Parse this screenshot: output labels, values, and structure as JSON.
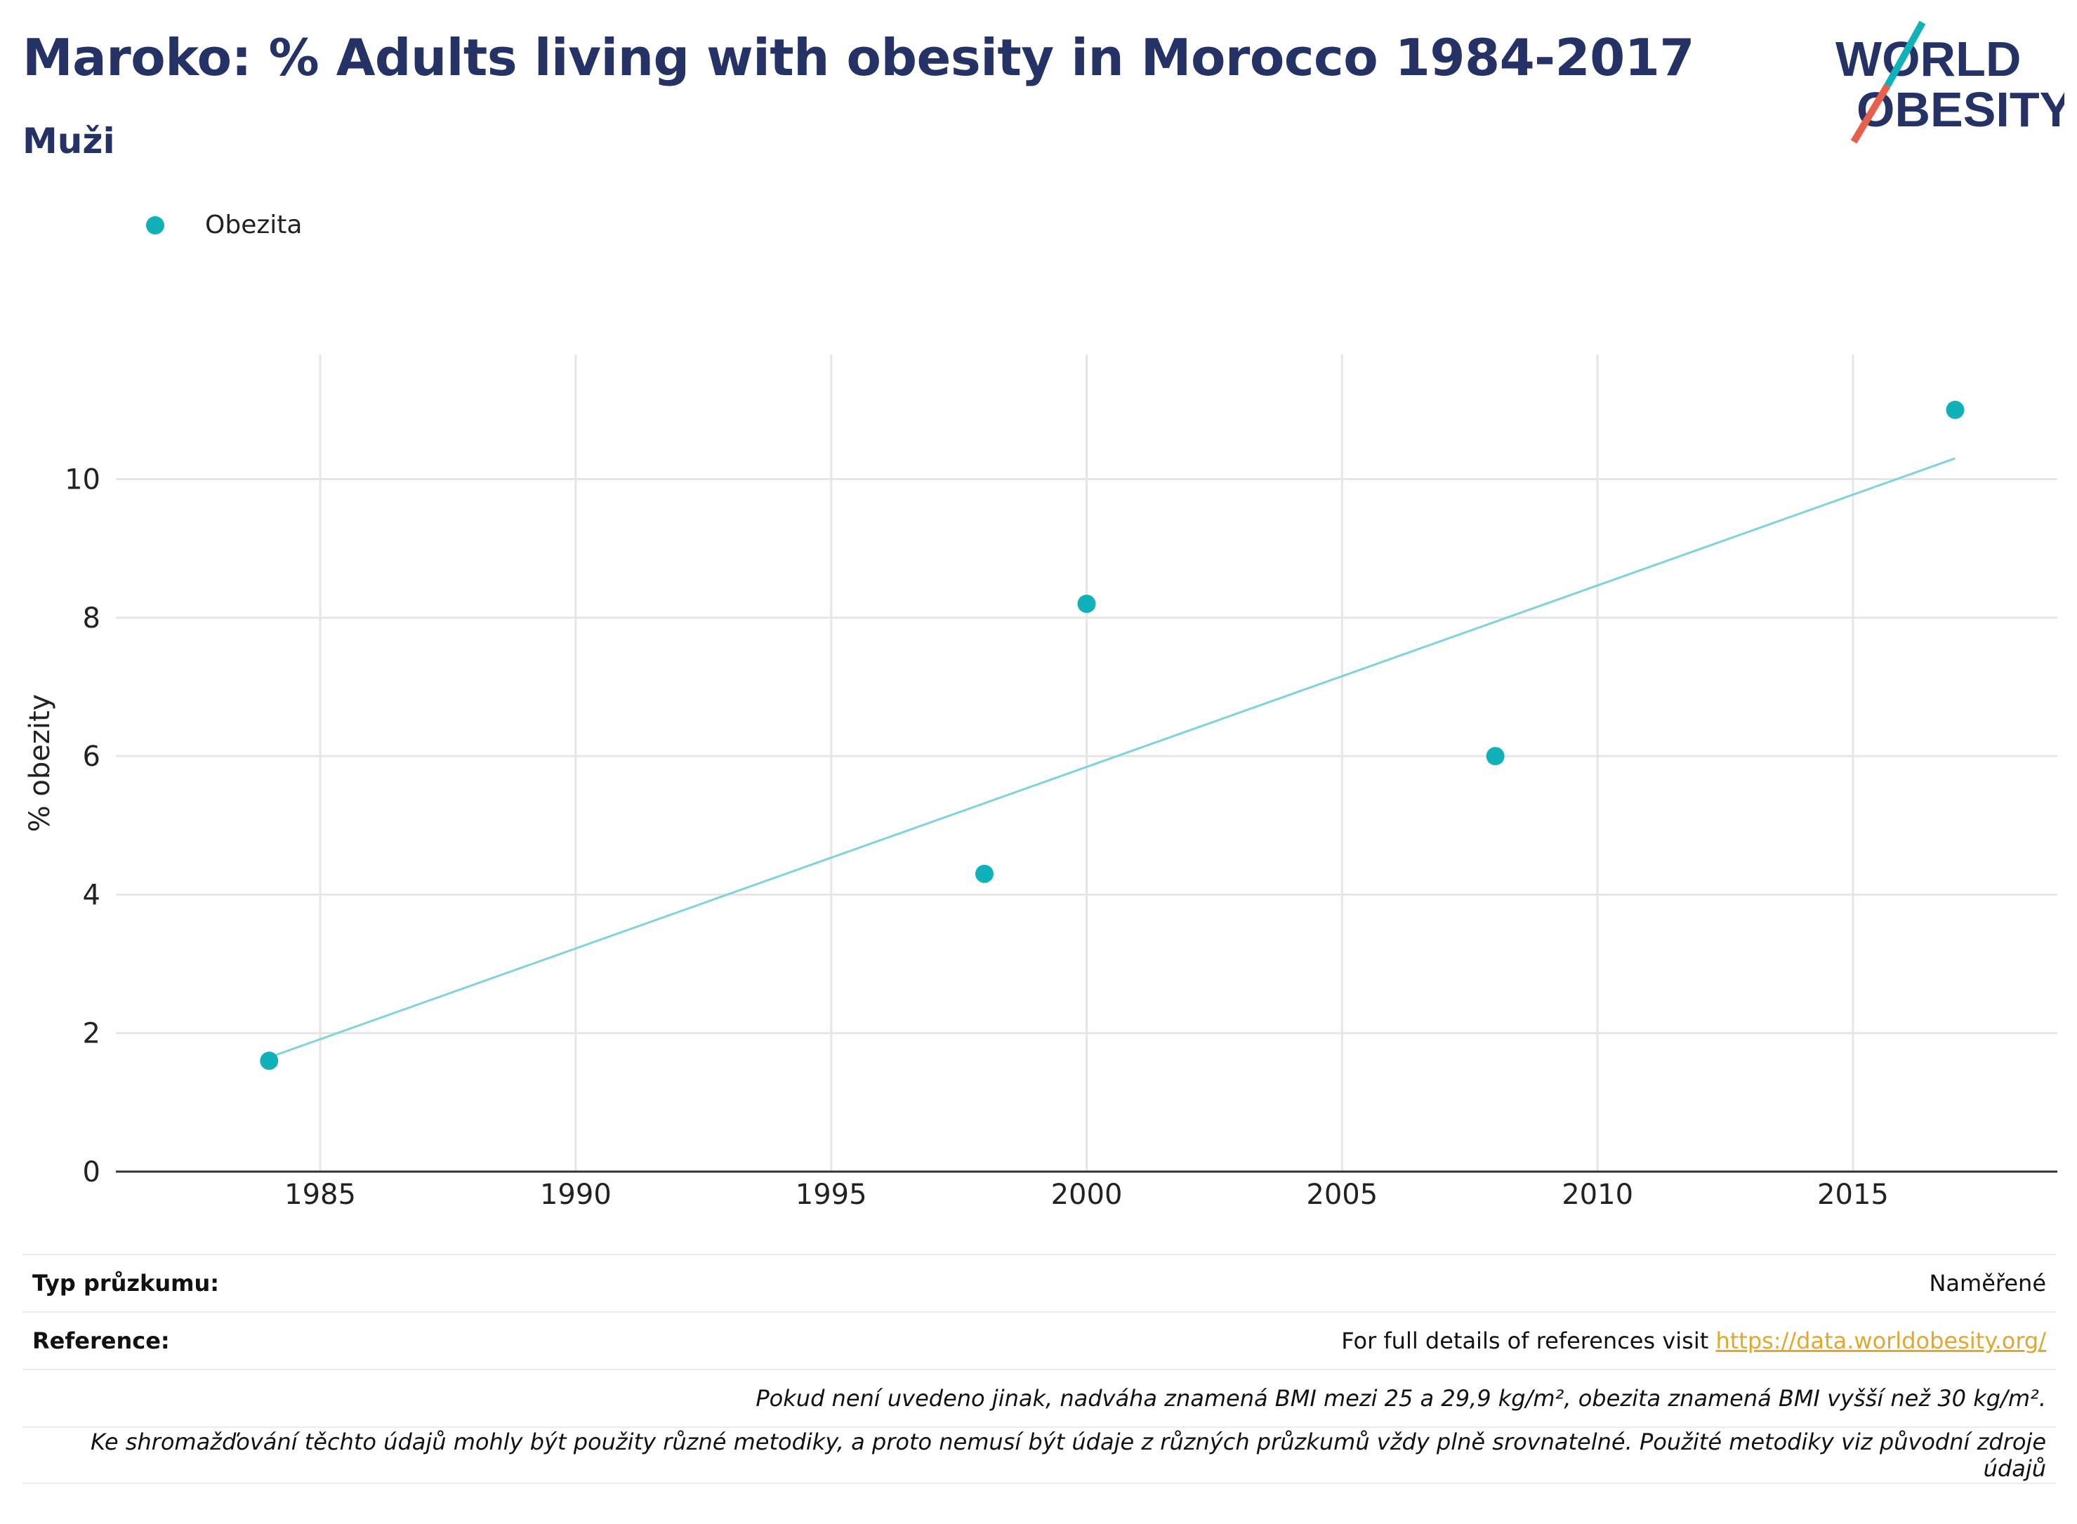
{
  "header": {
    "title": "Maroko: % Adults living with obesity in Morocco 1984-2017",
    "subtitle": "Muži"
  },
  "logo": {
    "line1": "WORLD",
    "line2": "OBESITY"
  },
  "legend": {
    "label": "Obezita"
  },
  "colors": {
    "accent": "#10b1b9",
    "trend": "#7fd4d9",
    "title": "#253266",
    "link": "#e0a82e",
    "logo_red": "#e8604c"
  },
  "chart_data": {
    "type": "scatter",
    "title": "Maroko: % Adults living with obesity in Morocco 1984-2017",
    "subtitle": "Muži",
    "xlabel": "",
    "ylabel": "% obezity",
    "xlim": [
      1981,
      2019
    ],
    "ylim": [
      0,
      11.8
    ],
    "x_ticks": [
      1985,
      1990,
      1995,
      2000,
      2005,
      2010,
      2015
    ],
    "y_ticks": [
      0,
      2,
      4,
      6,
      8,
      10
    ],
    "grid": true,
    "legend_position": "top-left",
    "series": [
      {
        "name": "Obezita",
        "x": [
          1984,
          1998,
          2000,
          2008,
          2017
        ],
        "y": [
          1.6,
          4.3,
          8.2,
          6.0,
          11.0
        ]
      }
    ],
    "trendline": {
      "x": [
        1984,
        2017
      ],
      "y": [
        1.65,
        10.3
      ]
    }
  },
  "footer": {
    "survey_label": "Typ průzkumu:",
    "survey_value": "Naměřené",
    "reference_label": "Reference:",
    "reference_text": "For full details of references visit ",
    "reference_link": "https://data.worldobesity.org/",
    "note1": "Pokud není uvedeno jinak, nadváha znamená BMI mezi 25 a 29,9 kg/m², obezita znamená BMI vyšší než 30 kg/m².",
    "note2": "Ke shromažďování těchto údajů mohly být použity různé metodiky, a proto nemusí být údaje z různých průzkumů vždy plně srovnatelné. Použité metodiky viz původní zdroje údajů"
  }
}
